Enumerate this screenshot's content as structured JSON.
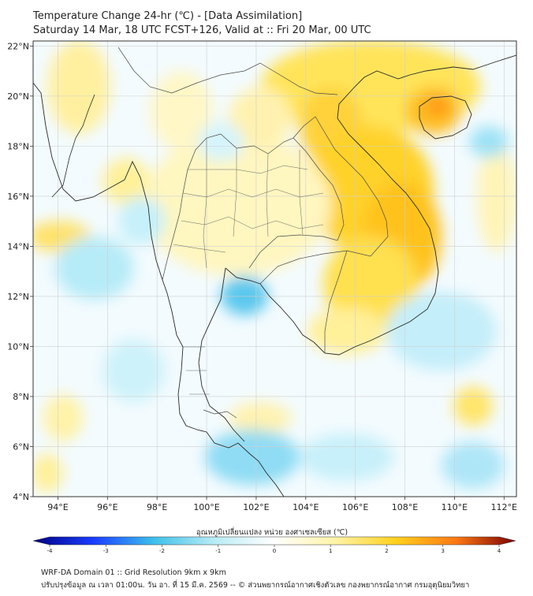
{
  "header": {
    "title_line1": "Temperature Change 24-hr (℃) - [Data Assimilation]",
    "title_line2": "Saturday 14 Mar, 18 UTC FCST+126, Valid at :: Fri 20 Mar, 00 UTC"
  },
  "map": {
    "lat_labels": [
      "4°N",
      "6°N",
      "8°N",
      "10°N",
      "12°N",
      "14°N",
      "16°N",
      "18°N",
      "20°N",
      "22°N"
    ],
    "lat_values": [
      4,
      6,
      8,
      10,
      12,
      14,
      16,
      18,
      20,
      22
    ],
    "lon_labels": [
      "94°E",
      "96°E",
      "98°E",
      "100°E",
      "102°E",
      "104°E",
      "106°E",
      "108°E",
      "110°E",
      "112°E"
    ],
    "lon_values": [
      94,
      96,
      98,
      100,
      102,
      104,
      106,
      108,
      110,
      112
    ],
    "extent": {
      "lon_min": 93.0,
      "lon_max": 112.5,
      "lat_min": 4.0,
      "lat_max": 22.2
    }
  },
  "colorbar": {
    "label": "อุณหภูมิเปลี่ยนแปลง หน่วย องศาเซลเซียส (℃)",
    "ticks": [
      "-4",
      "-3",
      "-2",
      "-1",
      "0",
      "1",
      "2",
      "3",
      "4"
    ],
    "tick_values": [
      -4,
      -3,
      -2,
      -1,
      0,
      1,
      2,
      3,
      4
    ],
    "range": [
      -4,
      4
    ]
  },
  "footer": {
    "line1": "WRF-DA Domain 01 :: Grid Resolution 9km x 9km",
    "line2": "ปรับปรุงข้อมูล ณ เวลา 01:00น. วัน อา. ที่ 15 มี.ค. 2569 -- © ส่วนพยากรณ์อากาศเชิงตัวเลข กองพยากรณ์อากาศ กรมอุตุนิยมวิทยา"
  },
  "colors": {
    "neg4": "#000080",
    "neg3": "#1a3cff",
    "neg2": "#3dc0ea",
    "neg1": "#b8ecf6",
    "zero": "#ffffff",
    "pos1": "#fff4a8",
    "pos2": "#ffd21e",
    "pos3": "#ff7a14",
    "pos4": "#7a0000",
    "coast": "#2a2a2a",
    "border": "#4a4a4a",
    "grid": "#cfcfcf"
  }
}
